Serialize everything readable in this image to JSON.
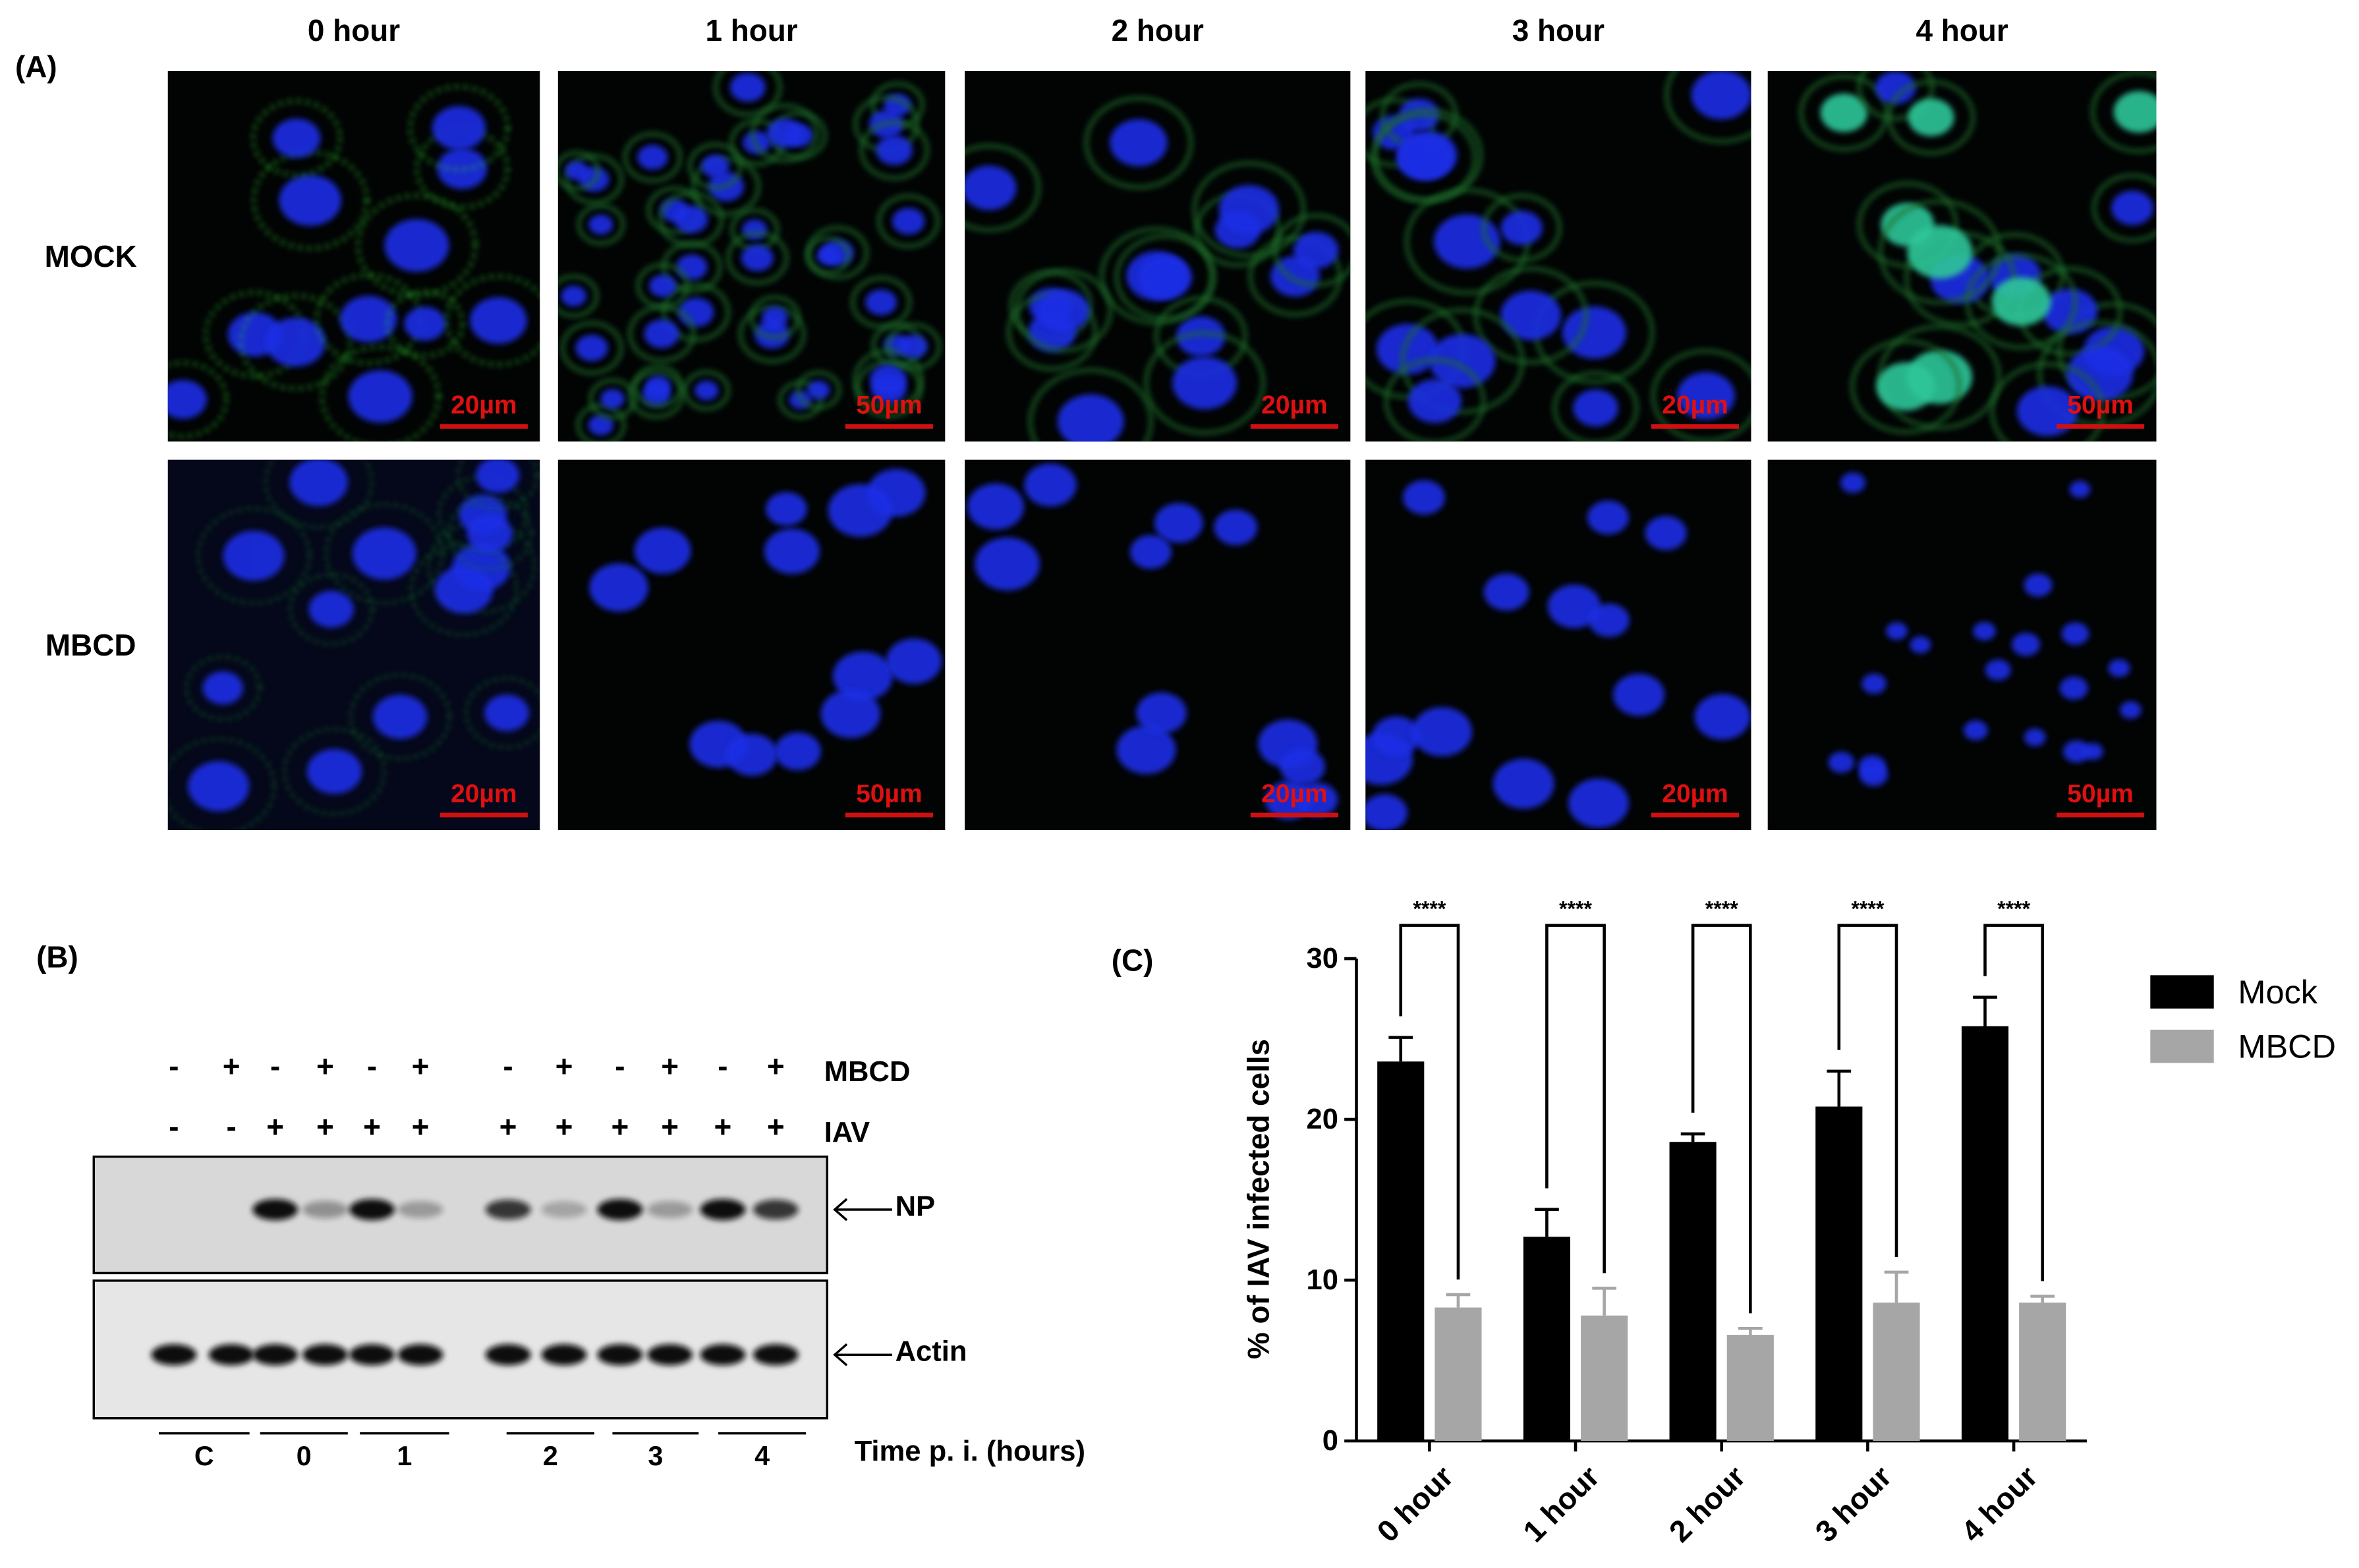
{
  "panel_a": {
    "label": "(A)",
    "columns": [
      "0 hour",
      "1 hour",
      "2 hour",
      "3 hour",
      "4 hour"
    ],
    "rows": [
      "MOCK",
      "MBCD"
    ],
    "scale_bars": [
      [
        "20µm",
        "50µm",
        "20µm",
        "20µm",
        "50µm"
      ],
      [
        "20µm",
        "50µm",
        "20µm",
        "20µm",
        "50µm"
      ]
    ]
  },
  "panel_b": {
    "label": "(B)",
    "treatments": [
      {
        "name": "MBCD",
        "signs": [
          "-",
          "+",
          "-",
          "+",
          "-",
          "+",
          "-",
          "+",
          "-",
          "+",
          "-",
          "+"
        ]
      },
      {
        "name": "IAV",
        "signs": [
          "-",
          "-",
          "+",
          "+",
          "+",
          "+",
          "+",
          "+",
          "+",
          "+",
          "+",
          "+"
        ]
      }
    ],
    "bands": [
      "NP",
      "Actin"
    ],
    "time_groups": [
      "C",
      "0",
      "1",
      "2",
      "3",
      "4"
    ],
    "time_label": "Time p. i. (hours)"
  },
  "chart_data": {
    "type": "bar",
    "panel_label": "(C)",
    "ylabel": "% of IAV  infected cells",
    "categories": [
      "0 hour",
      "1 hour",
      "2 hour",
      "3 hour",
      "4 hour"
    ],
    "series": [
      {
        "name": "Mock",
        "color": "#000000",
        "values": [
          23.6,
          12.7,
          18.6,
          20.8,
          25.8
        ],
        "errors": [
          1.5,
          1.7,
          0.5,
          2.2,
          1.8
        ]
      },
      {
        "name": "MBCD",
        "color": "#a6a6a6",
        "values": [
          8.3,
          7.8,
          6.6,
          8.6,
          8.6
        ],
        "errors": [
          0.8,
          1.7,
          0.4,
          1.9,
          0.4
        ]
      }
    ],
    "significance": [
      "****",
      "****",
      "****",
      "****",
      "****"
    ],
    "ylim": [
      0,
      30
    ],
    "yticks": [
      0,
      10,
      20,
      30
    ],
    "legend": "right"
  }
}
